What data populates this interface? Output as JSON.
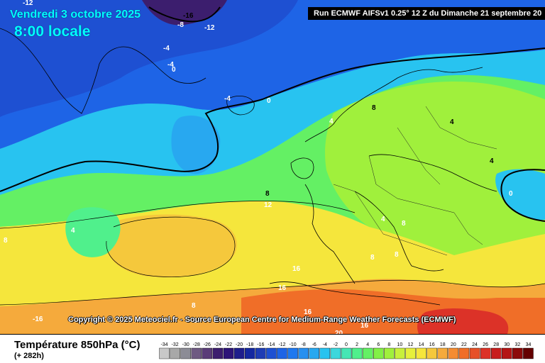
{
  "header": {
    "date": "Vendredi 3 octobre 2025",
    "time": "8:00 locale",
    "run": "Run ECMWF AIFSv1 0.25° 12 Z du Dimanche 21 septembre 20"
  },
  "copyright": "Copyright © 2025 Meteociel.fr - Source European Centre for Medium-Range Weather Forecasts (ECMWF)",
  "map": {
    "contour_labels": [
      "-16",
      "-12",
      "-8",
      "-12",
      "-4",
      "-4",
      "0",
      "-4",
      "0",
      "8",
      "4",
      "8",
      "4",
      "4",
      "0",
      "8",
      "12",
      "4",
      "8",
      "4",
      "8",
      "8",
      "16",
      "16",
      "16",
      "16",
      "20",
      "16",
      "-16",
      "8"
    ]
  },
  "legend": {
    "title": "Température 850hPa (°C)",
    "subtitle": "(+ 282h)",
    "ticks": [
      "-34",
      "-32",
      "-30",
      "-28",
      "-26",
      "-24",
      "-22",
      "-20",
      "-18",
      "-16",
      "-14",
      "-12",
      "-10",
      "-8",
      "-6",
      "-4",
      "-2",
      "0",
      "2",
      "4",
      "6",
      "8",
      "10",
      "12",
      "14",
      "16",
      "18",
      "20",
      "22",
      "24",
      "26",
      "28",
      "30",
      "32",
      "34"
    ],
    "colors": [
      "#c8c8c8",
      "#a8a8a8",
      "#8c8c96",
      "#6e5a82",
      "#5a3c78",
      "#3c1e6e",
      "#2d1478",
      "#1e1e8c",
      "#1428a0",
      "#1e3cb4",
      "#1e50d2",
      "#1e64e6",
      "#1e78f0",
      "#2890f0",
      "#28a8f0",
      "#28c3f0",
      "#3cd7dc",
      "#46e6b4",
      "#50f08c",
      "#64f064",
      "#82f046",
      "#a0f03c",
      "#c8f03c",
      "#e6f03c",
      "#f5e63c",
      "#f5c83c",
      "#f5aa3c",
      "#f58c32",
      "#f06e28",
      "#e65028",
      "#dc3228",
      "#c81e1e",
      "#b41414",
      "#8c0a0a",
      "#640000"
    ]
  }
}
